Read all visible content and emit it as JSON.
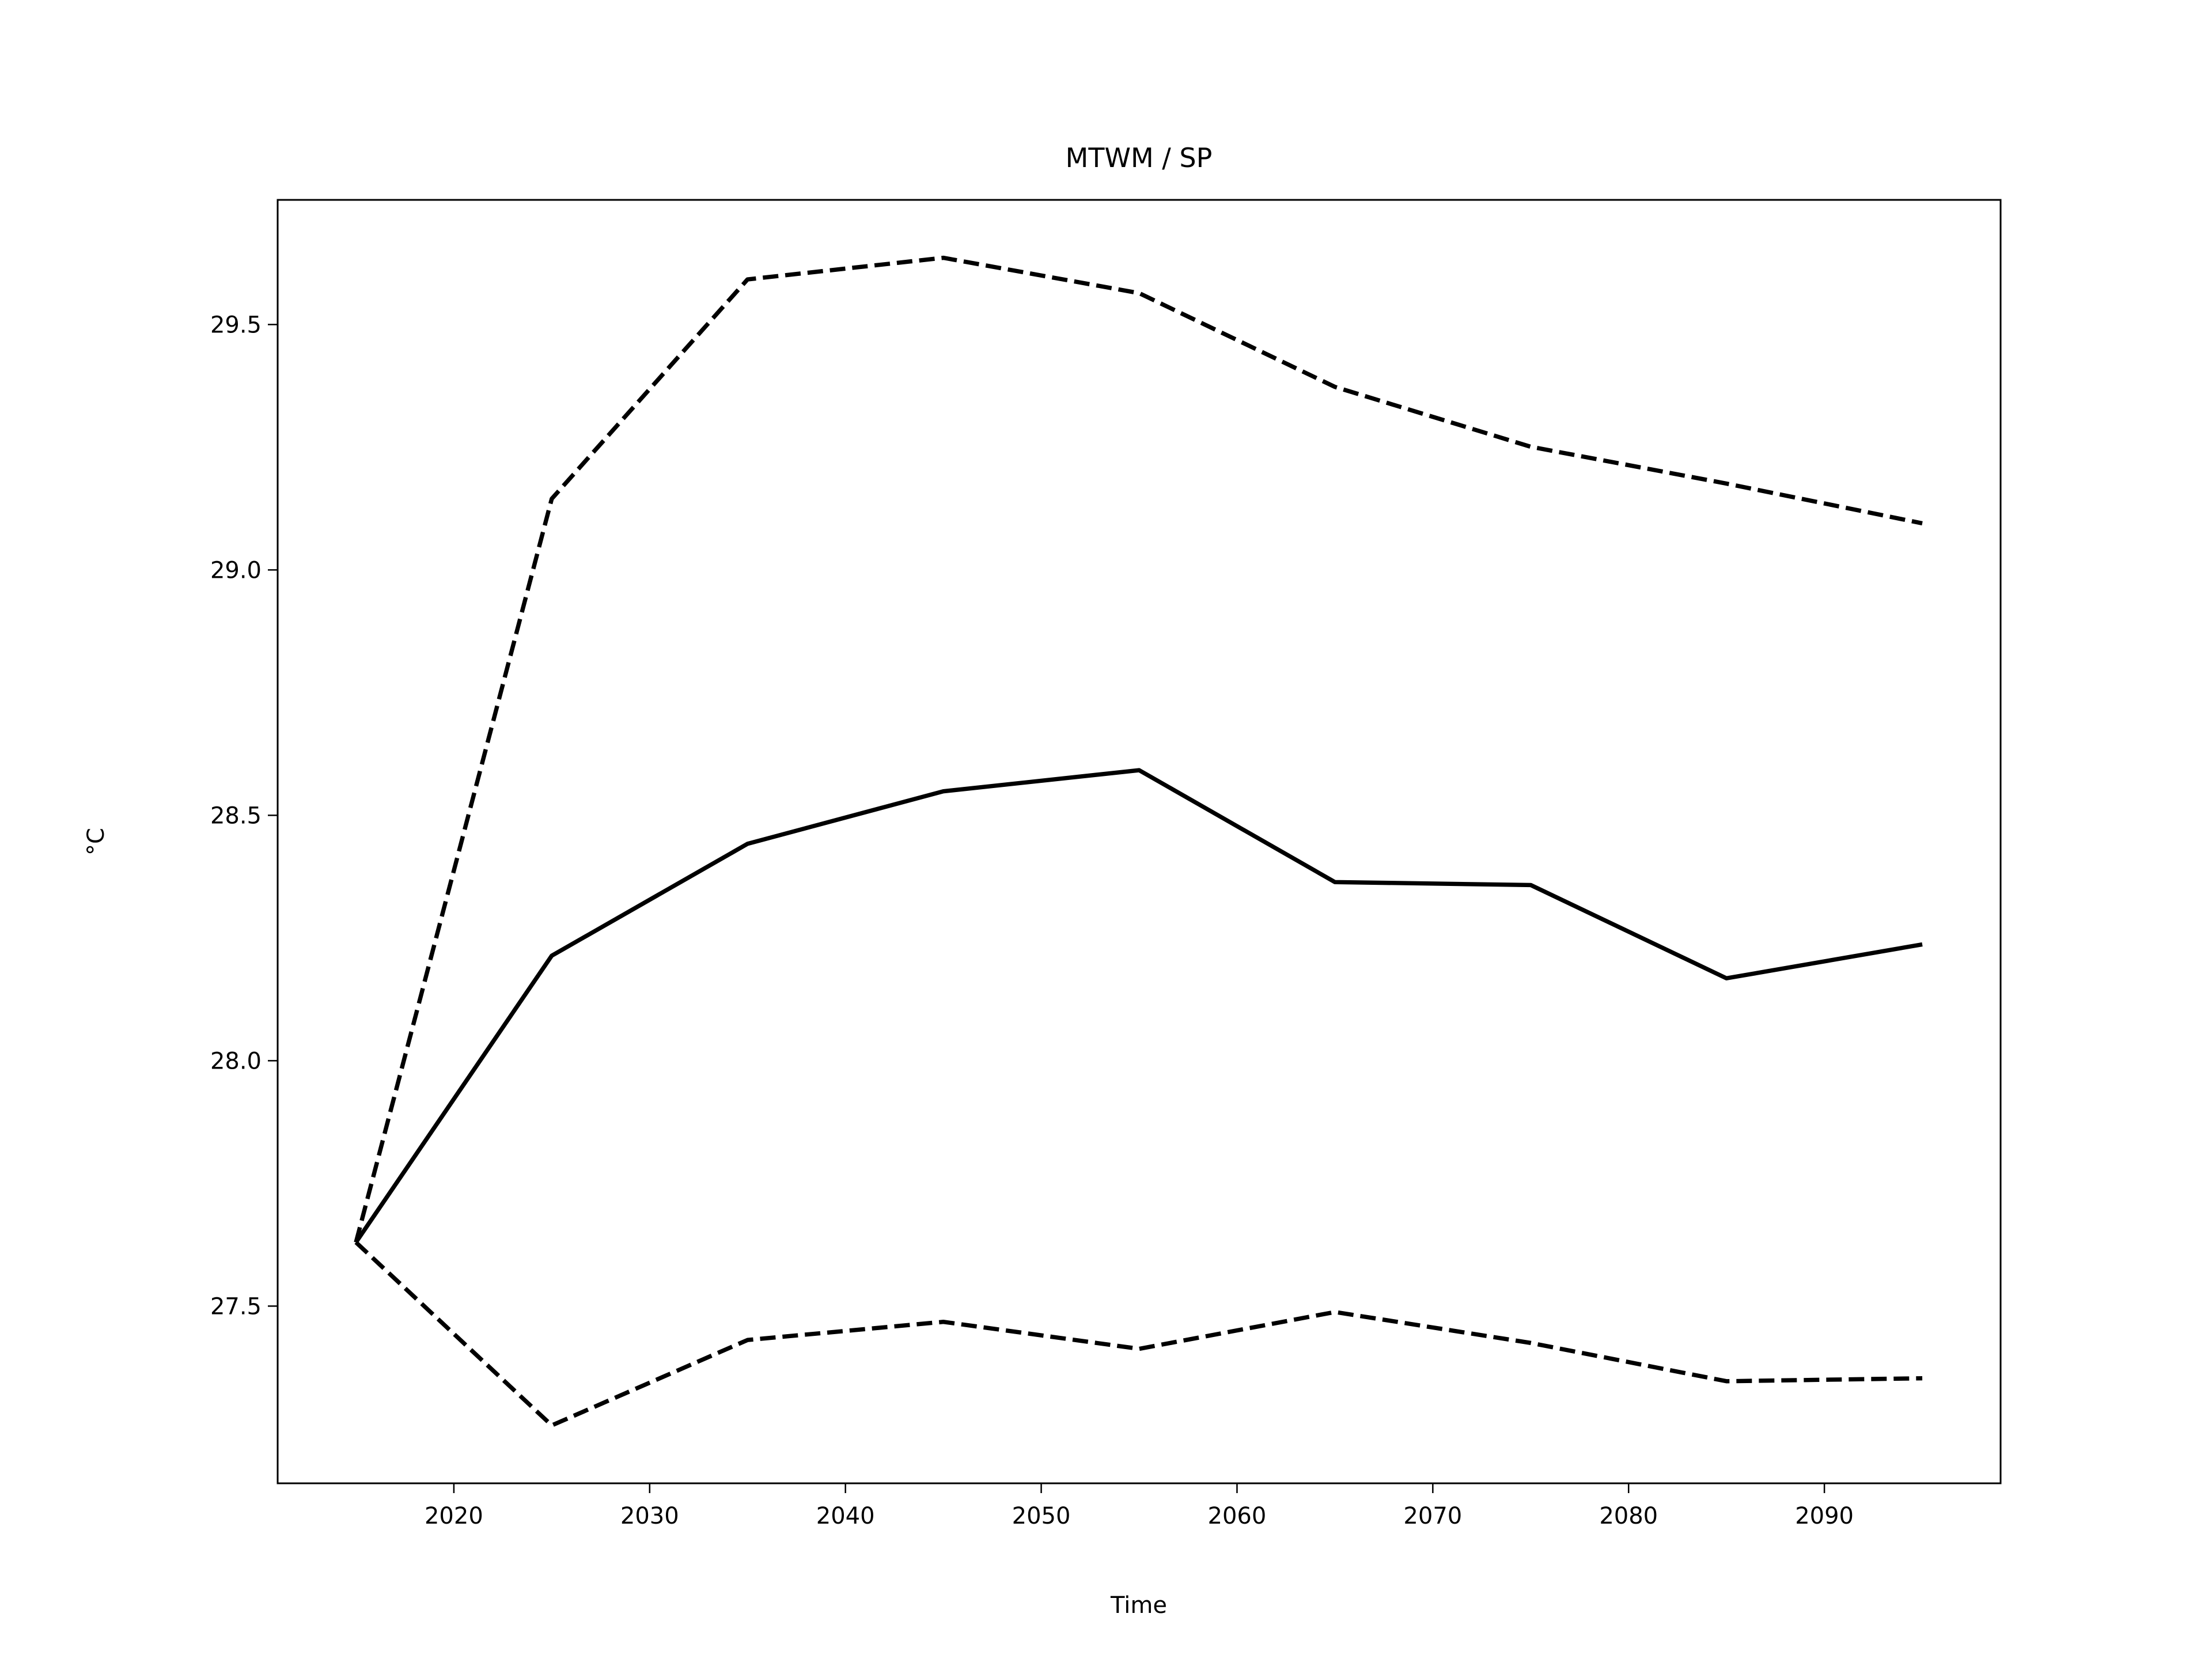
{
  "chart_data": {
    "type": "line",
    "title": "MTWM / SP",
    "xlabel": "Time",
    "ylabel": "°C",
    "x": [
      2015,
      2025,
      2035,
      2045,
      2055,
      2065,
      2075,
      2085,
      2095
    ],
    "series": [
      {
        "color": "#000000",
        "style": "solid",
        "values": [
          27.63,
          28.214,
          28.442,
          28.549,
          28.592,
          28.364,
          28.358,
          28.168,
          28.237
        ]
      },
      {
        "color": "#000000",
        "style": "dashed",
        "values": [
          27.63,
          29.145,
          29.592,
          29.636,
          29.564,
          29.373,
          29.251,
          29.176,
          29.095
        ]
      },
      {
        "color": "#000000",
        "style": "dashed",
        "values": [
          27.63,
          27.257,
          27.431,
          27.468,
          27.413,
          27.488,
          27.425,
          27.347,
          27.353
        ]
      }
    ],
    "xlim": [
      2011,
      2099
    ],
    "xticks": [
      2020,
      2030,
      2040,
      2050,
      2060,
      2070,
      2080,
      2090
    ],
    "ylim": [
      27.139,
      29.754
    ],
    "yticks": [
      {
        "value": 27.5,
        "label": "27.5"
      },
      {
        "value": 28,
        "label": "28.0"
      },
      {
        "value": 28.5,
        "label": "28.5"
      },
      {
        "value": 29,
        "label": "29.0"
      },
      {
        "value": 29.5,
        "label": "29.5"
      }
    ],
    "grid": false
  }
}
